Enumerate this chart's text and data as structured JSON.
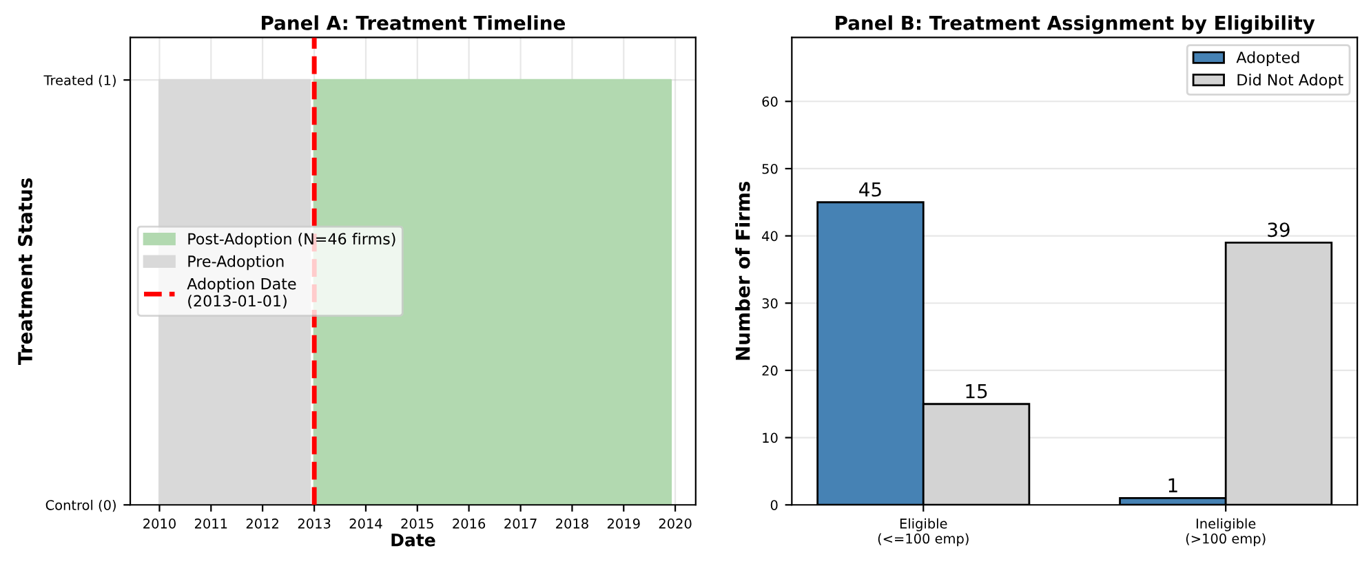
{
  "chart_data": [
    {
      "type": "area",
      "title": "Panel A: Treatment Timeline",
      "xlabel": "Date",
      "ylabel": "Treatment Status",
      "series": [
        {
          "name": "Post-Adoption (N=46 firms)",
          "color": "#b2d9b0",
          "x": [
            "2013-01-01",
            "2019-12-01"
          ],
          "values": [
            1,
            1
          ]
        },
        {
          "name": "Pre-Adoption",
          "color": "#d9d9d9",
          "x": [
            "2010-01-01",
            "2012-12-01"
          ],
          "values": [
            1,
            1
          ]
        }
      ],
      "ref_lines": [
        {
          "axis": "x",
          "value": "2013-01-01",
          "label": "Adoption Date\n(2013-01-01)",
          "color": "#ff0000",
          "line_style": "dashed"
        }
      ],
      "xlim": [
        "2009-06-08",
        "2020-05-25"
      ],
      "xticks": [
        {
          "value": "2010-01-01",
          "label": "2010"
        },
        {
          "value": "2011-01-01",
          "label": "2011"
        },
        {
          "value": "2012-01-01",
          "label": "2012"
        },
        {
          "value": "2013-01-01",
          "label": "2013"
        },
        {
          "value": "2014-01-01",
          "label": "2014"
        },
        {
          "value": "2015-01-01",
          "label": "2015"
        },
        {
          "value": "2016-01-01",
          "label": "2016"
        },
        {
          "value": "2017-01-01",
          "label": "2017"
        },
        {
          "value": "2018-01-01",
          "label": "2018"
        },
        {
          "value": "2019-01-01",
          "label": "2019"
        },
        {
          "value": "2020-01-01",
          "label": "2020"
        }
      ],
      "ylim": [
        0,
        1.1
      ],
      "yticks": [
        {
          "value": 0,
          "label": "Control (0)"
        },
        {
          "value": 1,
          "label": "Treated (1)"
        }
      ],
      "grid": true,
      "legend": "left"
    },
    {
      "type": "bar",
      "title": "Panel B: Treatment Assignment by Eligibility",
      "ylabel": "Number of Firms",
      "categories": [
        "Eligible\n(<=100 emp)",
        "Ineligible\n(>100 emp)"
      ],
      "series": [
        {
          "name": "Adopted",
          "color": "#4682b4",
          "values": [
            45,
            1
          ]
        },
        {
          "name": "Did Not Adopt",
          "color": "#d3d3d3",
          "values": [
            15,
            39
          ]
        }
      ],
      "ylim": [
        0,
        69.5
      ],
      "yticks": [
        0,
        10,
        20,
        30,
        40,
        50,
        60
      ],
      "data_labels": true,
      "grid": "y",
      "legend": "top right"
    }
  ]
}
